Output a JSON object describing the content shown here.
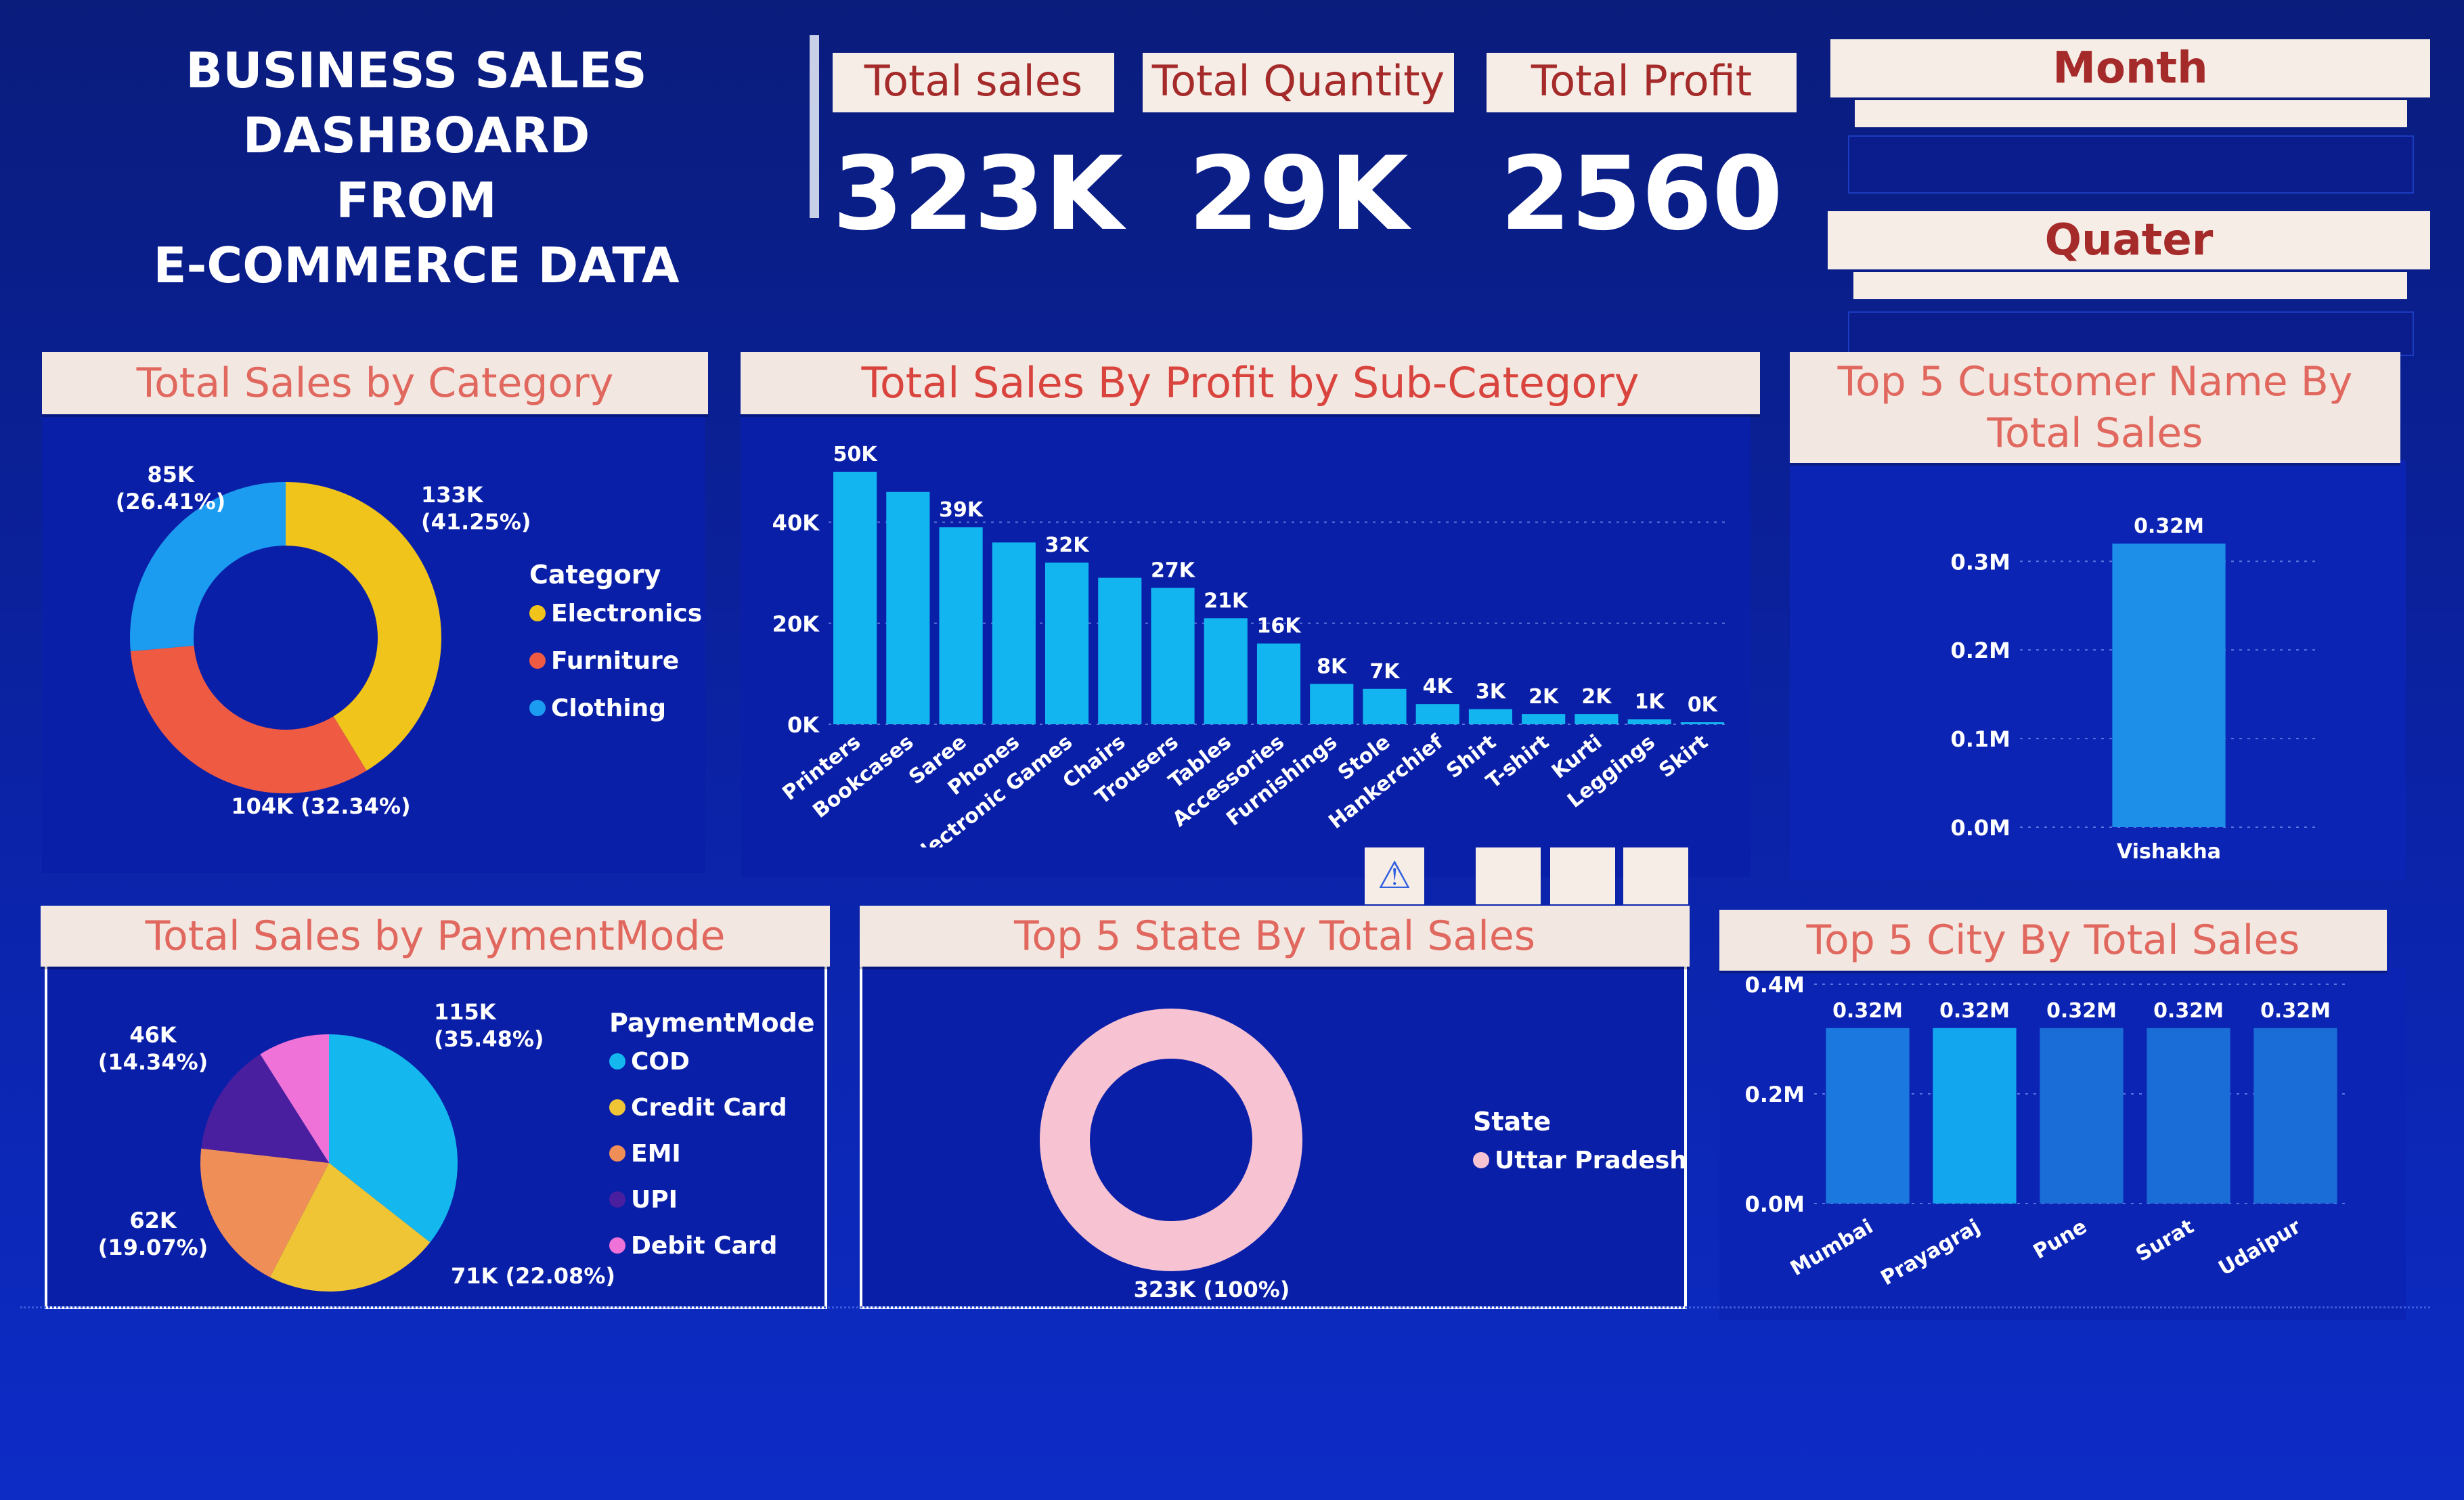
{
  "dashboard": {
    "title_line1": "BUSINESS SALES DASHBOARD",
    "title_line2": "FROM",
    "title_line3": "E-COMMERCE DATA"
  },
  "kpis": [
    {
      "label": "Total sales",
      "value": "323K"
    },
    {
      "label": "Total Quantity",
      "value": "29K"
    },
    {
      "label": "Total Profit",
      "value": "2560"
    }
  ],
  "slicers": {
    "month": "Month",
    "quarter": "Quater"
  },
  "colors": {
    "background": "#0b23a8",
    "header_bg": "#f3e8e1",
    "header_text": "#e0685f",
    "bar": "#12b5f0",
    "electronics": "#f0c41b",
    "furniture": "#ef5b42",
    "clothing": "#1c9cf0",
    "cod": "#14b8ee",
    "credit_card": "#f0c535",
    "emi": "#ef8e57",
    "upi": "#4a1f9f",
    "debit_card": "#ee72d8",
    "uttar_pradesh": "#f7c2d2"
  },
  "chart_data": [
    {
      "id": "category",
      "type": "pie",
      "title": "Total Sales by Category",
      "legend_title": "Category",
      "legend_position": "right",
      "slices": [
        {
          "label": "Electronics",
          "value": 133,
          "value_label": "133K",
          "pct_label": "(41.25%)",
          "color": "#f0c41b"
        },
        {
          "label": "Furniture",
          "value": 104,
          "value_label": "104K (32.34%)",
          "pct_label": "",
          "color": "#ef5b42"
        },
        {
          "label": "Clothing",
          "value": 85,
          "value_label": "85K",
          "pct_label": "(26.41%)",
          "color": "#1c9cf0"
        }
      ]
    },
    {
      "id": "subcategory",
      "type": "bar",
      "title": "Total Sales By Profit by Sub-Category",
      "categories": [
        "Printers",
        "Bookcases",
        "Saree",
        "Phones",
        "Electronic Games",
        "Chairs",
        "Trousers",
        "Tables",
        "Accessories",
        "Furnishings",
        "Stole",
        "Hankerchief",
        "Shirt",
        "T-shirt",
        "Kurti",
        "Leggings",
        "Skirt"
      ],
      "values": [
        50,
        46,
        39,
        36,
        32,
        29,
        27,
        21,
        16,
        8,
        7,
        4,
        3,
        2,
        2,
        1,
        0
      ],
      "data_labels": [
        "50K",
        "",
        "39K",
        "",
        "32K",
        "",
        "27K",
        "21K",
        "16K",
        "8K",
        "7K",
        "4K",
        "3K",
        "2K",
        "2K",
        "1K",
        "0K"
      ],
      "yticks": [
        "0K",
        "20K",
        "40K"
      ],
      "ylim": [
        0,
        52
      ]
    },
    {
      "id": "customers",
      "type": "bar",
      "title_line1": "Top 5 Customer Name By",
      "title_line2": "Total Sales",
      "categories": [
        "Vishakha"
      ],
      "values": [
        0.32
      ],
      "data_labels": [
        "0.32M"
      ],
      "yticks": [
        "0.0M",
        "0.1M",
        "0.2M",
        "0.3M"
      ],
      "ylim": [
        0,
        0.33
      ]
    },
    {
      "id": "payment",
      "type": "pie",
      "title": "Total Sales by PaymentMode",
      "legend_title": "PaymentMode",
      "legend_position": "right",
      "slices": [
        {
          "label": "COD",
          "value": 115,
          "value_label": "115K",
          "pct_label": "(35.48%)",
          "color": "#14b8ee"
        },
        {
          "label": "Credit Card",
          "value": 71,
          "value_label": "71K (22.08%)",
          "pct_label": "",
          "color": "#f0c535"
        },
        {
          "label": "EMI",
          "value": 62,
          "value_label": "62K",
          "pct_label": "(19.07%)",
          "color": "#ef8e57"
        },
        {
          "label": "UPI",
          "value": 46,
          "value_label": "46K",
          "pct_label": "(14.34%)",
          "color": "#4a1f9f"
        },
        {
          "label": "Debit Card",
          "value": 29,
          "value_label": "",
          "pct_label": "",
          "color": "#ee72d8"
        }
      ]
    },
    {
      "id": "state",
      "type": "pie",
      "title": "Top 5 State By Total Sales",
      "legend_title": "State",
      "legend_position": "right",
      "slices": [
        {
          "label": "Uttar Pradesh",
          "value": 323,
          "value_label": "323K (100%)",
          "pct_label": "",
          "color": "#f7c2d2"
        }
      ]
    },
    {
      "id": "city",
      "type": "bar",
      "title": "Top 5 City By Total Sales",
      "categories": [
        "Mumbai",
        "Prayagraj",
        "Pune",
        "Surat",
        "Udaipur"
      ],
      "values": [
        0.32,
        0.32,
        0.32,
        0.32,
        0.32
      ],
      "data_labels": [
        "0.32M",
        "0.32M",
        "0.32M",
        "0.32M",
        "0.32M"
      ],
      "yticks": [
        "0.0M",
        "0.2M",
        "0.4M"
      ],
      "ylim": [
        0,
        0.4
      ]
    }
  ]
}
